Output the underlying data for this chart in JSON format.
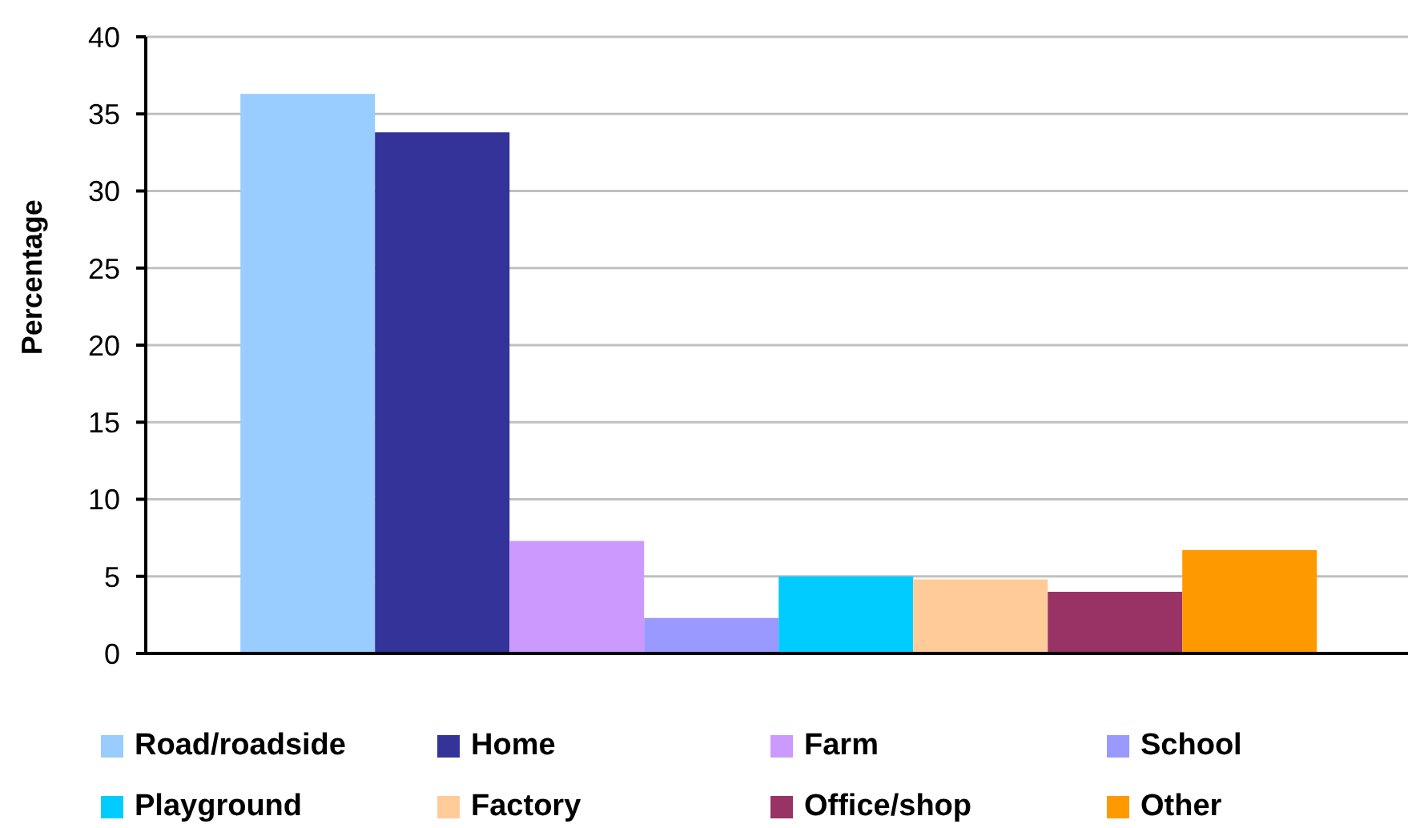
{
  "chart_data": {
    "type": "bar",
    "ylabel": "Percentage",
    "categories": [
      null
    ],
    "series": [
      {
        "name": "Road/roadside",
        "color": "#99ccff",
        "values": [
          36.3
        ]
      },
      {
        "name": "Home",
        "color": "#333399",
        "values": [
          33.8
        ]
      },
      {
        "name": "Farm",
        "color": "#cc99ff",
        "values": [
          7.3
        ]
      },
      {
        "name": "School",
        "color": "#9999ff",
        "values": [
          2.3
        ]
      },
      {
        "name": "Playground",
        "color": "#00ccff",
        "values": [
          5.0
        ]
      },
      {
        "name": "Factory",
        "color": "#ffcc99",
        "values": [
          4.8
        ]
      },
      {
        "name": "Office/shop",
        "color": "#993366",
        "values": [
          4.0
        ]
      },
      {
        "name": "Other",
        "color": "#ff9900",
        "values": [
          6.7
        ]
      }
    ],
    "ylim": [
      0,
      40
    ],
    "yticks": [
      0,
      5,
      10,
      15,
      20,
      25,
      30,
      35,
      40
    ],
    "grid": "y",
    "legend": "bottom"
  }
}
